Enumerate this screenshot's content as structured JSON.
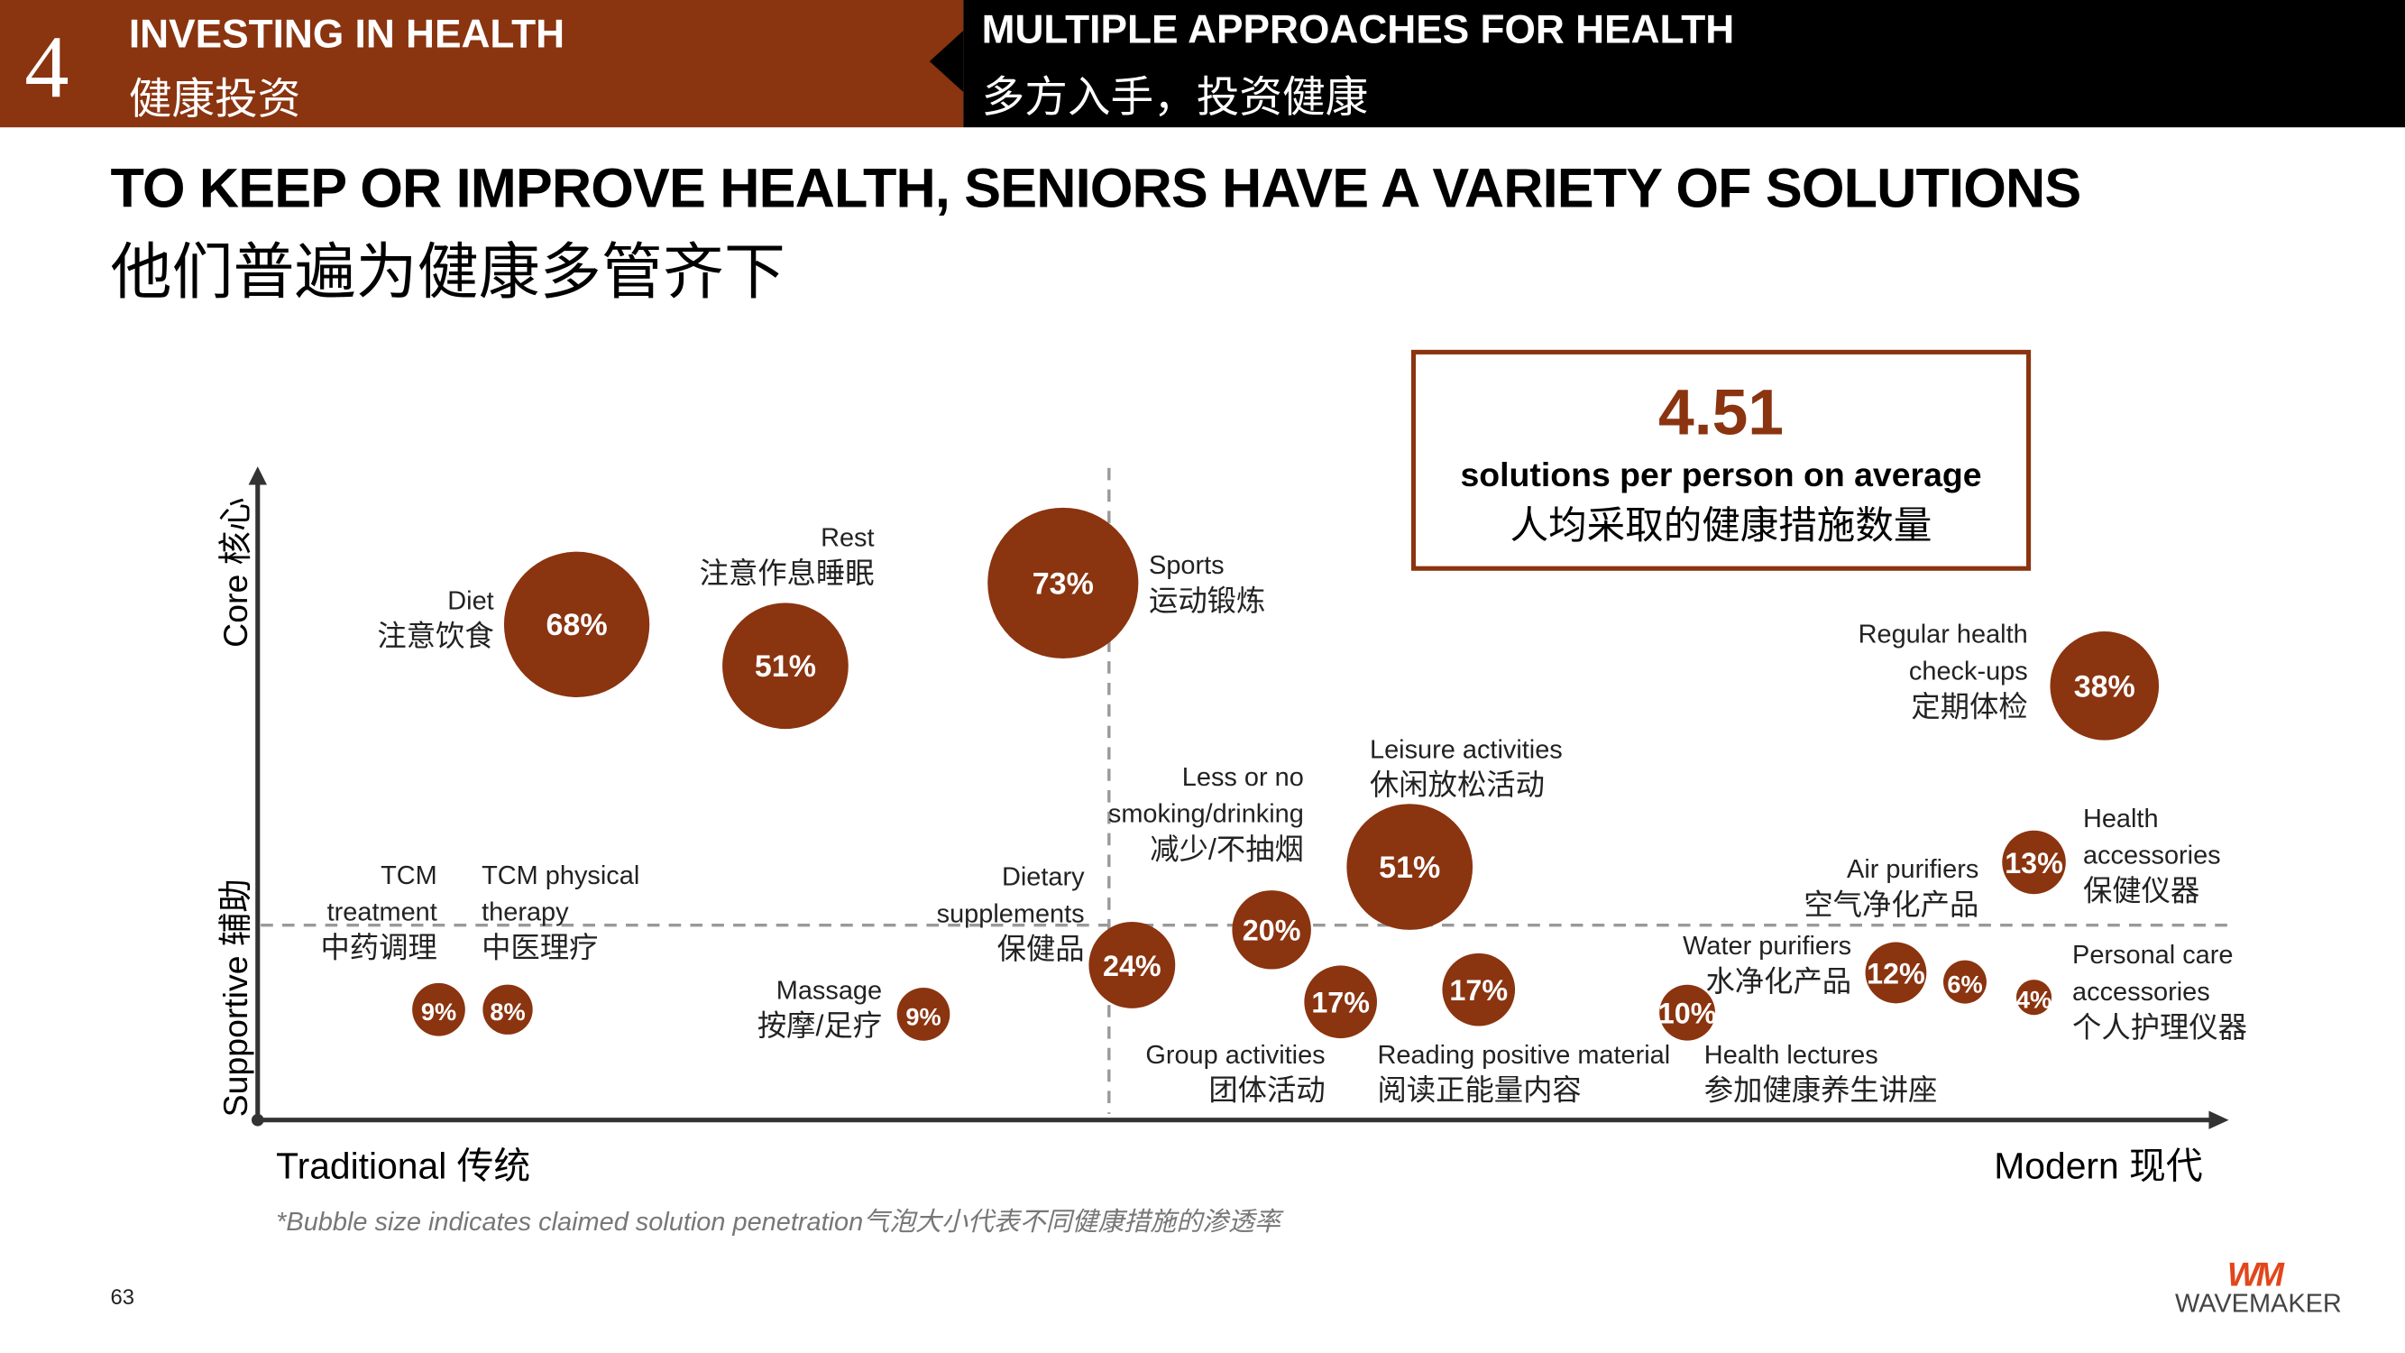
{
  "header": {
    "section_number": "4",
    "section_en": "INVESTING IN HEALTH",
    "section_cn": "健康投资",
    "topic_en": "MULTIPLE APPROACHES FOR HEALTH",
    "topic_cn": "多方入手，投资健康"
  },
  "title": {
    "en": "TO KEEP OR IMPROVE HEALTH, SENIORS HAVE A VARIETY OF SOLUTIONS",
    "cn": "他们普遍为健康多管齐下"
  },
  "stat": {
    "value": "4.51",
    "en": "solutions per person on average",
    "cn": "人均采取的健康措施数量"
  },
  "chart_data": {
    "type": "scatter",
    "subtype": "bubble",
    "xlabel": "Traditional 传统 → Modern 现代",
    "ylabel": "Supportive 辅助 → Core 核心",
    "axis": {
      "x_low": "Traditional 传统",
      "x_high": "Modern 现代",
      "y_low": "Supportive 辅助",
      "y_high": "Core 核心"
    },
    "note": "*Bubble size indicates claimed solution penetration气泡大小代表不同健康措施的渗透率",
    "bubble_color": "#8a3410",
    "points": [
      {
        "en": "Diet",
        "cn": "注意饮食",
        "value": 68,
        "label": "68%",
        "quadrant": "traditional-core"
      },
      {
        "en": "Rest",
        "cn": "注意作息睡眠",
        "value": 51,
        "label": "51%",
        "quadrant": "traditional-core"
      },
      {
        "en": "Sports",
        "cn": "运动锻炼",
        "value": 73,
        "label": "73%",
        "quadrant": "center-core"
      },
      {
        "en": "Regular health check-ups",
        "cn": "定期体检",
        "value": 38,
        "label": "38%",
        "quadrant": "modern-core"
      },
      {
        "en": "Leisure activities",
        "cn": "休闲放松活动",
        "value": 51,
        "label": "51%",
        "quadrant": "modern-core"
      },
      {
        "en": "Less or no smoking/drinking",
        "cn": "减少/不抽烟",
        "value": 20,
        "label": "20%",
        "quadrant": "modern-border"
      },
      {
        "en": "Dietary supplements",
        "cn": "保健品",
        "value": 24,
        "label": "24%",
        "quadrant": "center-border"
      },
      {
        "en": "Group activities",
        "cn": "团体活动",
        "value": 17,
        "label": "17%",
        "quadrant": "modern-supportive"
      },
      {
        "en": "Reading positive material",
        "cn": "阅读正能量内容",
        "value": 17,
        "label": "17%",
        "quadrant": "modern-supportive"
      },
      {
        "en": "Health lectures",
        "cn": "参加健康养生讲座",
        "value": 10,
        "label": "10%",
        "quadrant": "modern-supportive"
      },
      {
        "en": "Water purifiers",
        "cn": "水净化产品",
        "value": 12,
        "label": "12%",
        "quadrant": "modern-supportive"
      },
      {
        "en": "Air purifiers",
        "cn": "空气净化产品",
        "value": 6,
        "label": "6%",
        "quadrant": "modern-supportive"
      },
      {
        "en": "Personal care accessories",
        "cn": "个人护理仪器",
        "value": 4,
        "label": "4%",
        "quadrant": "modern-supportive"
      },
      {
        "en": "Health accessories",
        "cn": "保健仪器",
        "value": 13,
        "label": "13%",
        "quadrant": "modern-border"
      },
      {
        "en": "TCM treatment",
        "cn": "中药调理",
        "value": 9,
        "label": "9%",
        "quadrant": "traditional-supportive"
      },
      {
        "en": "TCM physical therapy",
        "cn": "中医理疗",
        "value": 8,
        "label": "8%",
        "quadrant": "traditional-supportive"
      },
      {
        "en": "Massage",
        "cn": "按摩/足疗",
        "value": 9,
        "label": "9%",
        "quadrant": "traditional-supportive"
      }
    ],
    "labels": {
      "diet": [
        "Diet",
        "注意饮食"
      ],
      "rest": [
        "Rest",
        "注意作息睡眠"
      ],
      "sports": [
        "Sports",
        "运动锻炼"
      ],
      "checkups": [
        "Regular health",
        "check-ups",
        "定期体检"
      ],
      "leisure": [
        "Leisure activities",
        "休闲放松活动"
      ],
      "smoking": [
        "Less or no",
        "smoking/drinking",
        "减少/不抽烟"
      ],
      "supplements": [
        "Dietary",
        "supplements",
        "保健品"
      ],
      "group": [
        "Group activities",
        "团体活动"
      ],
      "reading": [
        "Reading positive material",
        "阅读正能量内容"
      ],
      "lectures": [
        "Health lectures",
        "参加健康养生讲座"
      ],
      "water": [
        "Water purifiers",
        "水净化产品"
      ],
      "air": [
        "Air purifiers",
        "空气净化产品"
      ],
      "personal": [
        "Personal care",
        "accessories",
        "个人护理仪器"
      ],
      "healthacc": [
        "Health",
        "accessories",
        "保健仪器"
      ],
      "tcm": [
        "TCM",
        "treatment",
        "中药调理"
      ],
      "tcmphys": [
        "TCM physical",
        "therapy",
        "中医理疗"
      ],
      "massage": [
        "Massage",
        "按摩/足疗"
      ]
    }
  },
  "footer": {
    "page": "63",
    "logo_mark": "WM",
    "logo_text": "WAVEMAKER"
  }
}
